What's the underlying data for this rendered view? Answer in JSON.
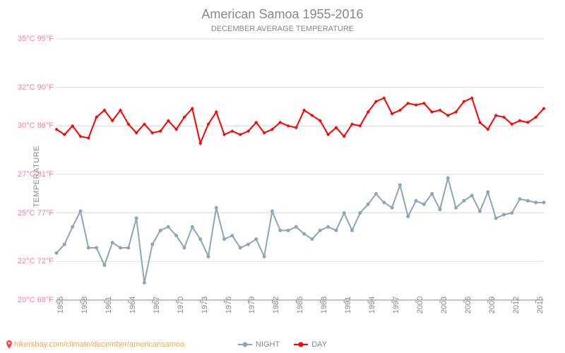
{
  "chart": {
    "title": "American Samoa 1955-2016",
    "subtitle": "DECEMBER AVERAGE TEMPERATURE",
    "ylabel": "TEMPERATURE",
    "type": "line",
    "background_color": "#ffffff",
    "title_fontsize": 18,
    "subtitle_fontsize": 11,
    "label_fontsize": 11,
    "tick_fontsize": 11,
    "title_color": "#888888",
    "ytick_color": "#ff7ab0",
    "xtick_color": "#888888",
    "grid_color": "#dddddd",
    "y_axis": {
      "min_c": 20,
      "max_c": 35,
      "ticks": [
        {
          "c": "20°C",
          "f": "68°F",
          "val": 20
        },
        {
          "c": "22°C",
          "f": "72°F",
          "val": 22.22
        },
        {
          "c": "25°C",
          "f": "77°F",
          "val": 25
        },
        {
          "c": "27°C",
          "f": "81°F",
          "val": 27.22
        },
        {
          "c": "30°C",
          "f": "86°F",
          "val": 30
        },
        {
          "c": "32°C",
          "f": "90°F",
          "val": 32.22
        },
        {
          "c": "35°C",
          "f": "95°F",
          "val": 35
        }
      ]
    },
    "x_axis": {
      "min": 1955,
      "max": 2016,
      "ticks": [
        1955,
        1958,
        1961,
        1964,
        1967,
        1970,
        1973,
        1976,
        1979,
        1982,
        1985,
        1988,
        1991,
        1994,
        1997,
        2000,
        2003,
        2006,
        2009,
        2012,
        2015
      ]
    },
    "series": {
      "day": {
        "label": "DAY",
        "color": "#ff0000",
        "line_width": 2,
        "marker": "diamond",
        "marker_size": 5,
        "years": [
          1955,
          1956,
          1957,
          1958,
          1959,
          1960,
          1961,
          1962,
          1963,
          1964,
          1965,
          1966,
          1967,
          1968,
          1969,
          1970,
          1971,
          1972,
          1973,
          1974,
          1975,
          1976,
          1977,
          1978,
          1979,
          1980,
          1981,
          1982,
          1983,
          1984,
          1985,
          1986,
          1987,
          1988,
          1989,
          1990,
          1991,
          1992,
          1993,
          1994,
          1995,
          1996,
          1997,
          1998,
          1999,
          2000,
          2001,
          2002,
          2003,
          2004,
          2005,
          2006,
          2007,
          2008,
          2009,
          2010,
          2011,
          2012,
          2013,
          2014,
          2015,
          2016
        ],
        "values": [
          29.8,
          29.5,
          30.0,
          29.4,
          29.3,
          30.5,
          30.9,
          30.3,
          30.9,
          30.1,
          29.6,
          30.1,
          29.6,
          29.7,
          30.3,
          29.8,
          30.5,
          31.0,
          29.0,
          30.1,
          30.8,
          29.5,
          29.7,
          29.5,
          29.7,
          30.2,
          29.6,
          29.8,
          30.2,
          30.0,
          29.9,
          30.9,
          30.6,
          30.3,
          29.5,
          29.9,
          29.4,
          30.1,
          30.0,
          30.8,
          31.4,
          31.6,
          30.7,
          30.9,
          31.3,
          31.2,
          31.3,
          30.8,
          30.9,
          30.6,
          30.8,
          31.4,
          31.6,
          30.2,
          29.8,
          30.6,
          30.5,
          30.1,
          30.3,
          30.2,
          30.5,
          31.0
        ]
      },
      "night": {
        "label": "NIGHT",
        "color": "#8fa5b0",
        "line_width": 2,
        "marker": "circle",
        "marker_size": 5,
        "years": [
          1955,
          1956,
          1957,
          1958,
          1959,
          1960,
          1961,
          1962,
          1963,
          1964,
          1965,
          1966,
          1967,
          1968,
          1969,
          1970,
          1971,
          1972,
          1973,
          1974,
          1975,
          1976,
          1977,
          1978,
          1979,
          1980,
          1981,
          1982,
          1983,
          1984,
          1985,
          1986,
          1987,
          1988,
          1989,
          1990,
          1991,
          1992,
          1993,
          1994,
          1995,
          1996,
          1997,
          1998,
          1999,
          2000,
          2001,
          2002,
          2003,
          2004,
          2005,
          2006,
          2007,
          2008,
          2009,
          2010,
          2011,
          2012,
          2013,
          2014,
          2015,
          2016
        ],
        "values": [
          22.7,
          23.2,
          24.2,
          25.1,
          23.0,
          23.0,
          22.0,
          23.3,
          23.0,
          23.0,
          24.7,
          21.0,
          23.2,
          24.0,
          24.2,
          23.7,
          23.0,
          24.2,
          23.5,
          22.5,
          25.3,
          23.5,
          23.7,
          23.0,
          23.2,
          23.5,
          22.5,
          25.1,
          24.0,
          24.0,
          24.2,
          23.8,
          23.5,
          24.0,
          24.2,
          24.0,
          25.0,
          24.0,
          25.0,
          25.5,
          26.1,
          25.6,
          25.3,
          26.6,
          24.8,
          25.7,
          25.5,
          26.1,
          25.2,
          27.0,
          25.3,
          25.7,
          26.0,
          25.1,
          26.2,
          24.7,
          24.9,
          25.0,
          25.8,
          25.7,
          25.6,
          25.6
        ]
      }
    },
    "legend": {
      "position": "bottom-center",
      "items": [
        {
          "key": "night",
          "label": "NIGHT"
        },
        {
          "key": "day",
          "label": "DAY"
        }
      ]
    },
    "attribution": {
      "text": "hikersbay.com/climate/december/americansamoa",
      "color": "#ffa64d",
      "icon": "map-pin"
    }
  }
}
